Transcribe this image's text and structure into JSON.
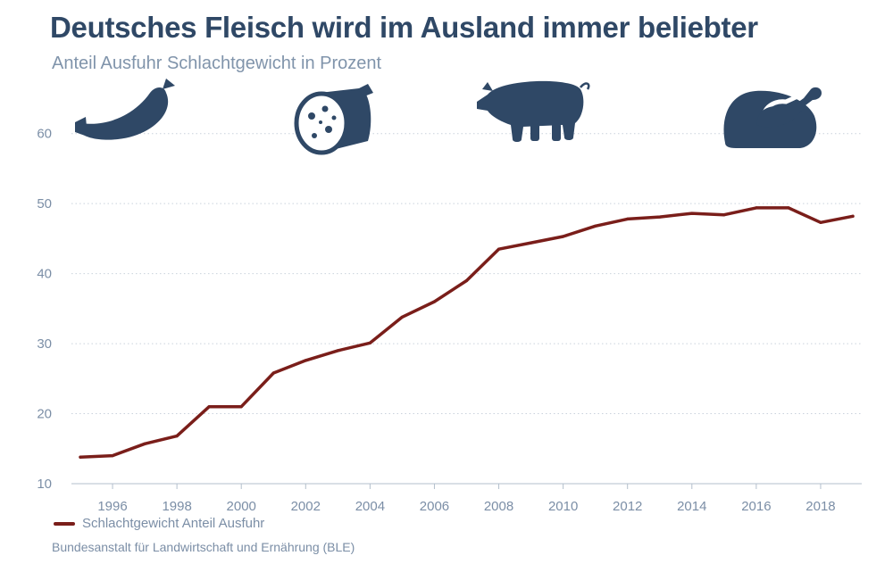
{
  "header": {
    "title": "Deutsches Fleisch wird im Ausland immer beliebter",
    "subtitle": "Anteil Ausfuhr Schlachtgewicht in Prozent"
  },
  "footer": {
    "legend_label": "Schlachtgewicht Anteil Ausfuhr",
    "source": "Bundesanstalt für Landwirtschaft und Ernährung (BLE)"
  },
  "icons": [
    "sausage-icon",
    "salami-icon",
    "pig-icon",
    "roast-chicken-icon"
  ],
  "colors": {
    "line": "#7a1e1a",
    "icon": "#2f4866",
    "text": "#7b8ea6",
    "title": "#2f4866"
  },
  "chart_data": {
    "type": "line",
    "title": "Deutsches Fleisch wird im Ausland immer beliebter",
    "subtitle": "Anteil Ausfuhr Schlachtgewicht in Prozent",
    "x": [
      1995,
      1996,
      1997,
      1998,
      1999,
      2000,
      2001,
      2002,
      2003,
      2004,
      2005,
      2006,
      2007,
      2008,
      2009,
      2010,
      2011,
      2012,
      2013,
      2014,
      2015,
      2016,
      2017,
      2018,
      2019
    ],
    "series": [
      {
        "name": "Schlachtgewicht Anteil Ausfuhr",
        "values": [
          13.8,
          14.0,
          15.7,
          16.8,
          21.0,
          21.0,
          25.8,
          27.6,
          29.0,
          30.1,
          33.8,
          36.0,
          39.0,
          43.5,
          44.4,
          45.3,
          46.8,
          47.8,
          48.1,
          48.6,
          48.4,
          49.4,
          49.4,
          47.3,
          48.2
        ]
      }
    ],
    "xticks": [
      1996,
      1998,
      2000,
      2002,
      2004,
      2006,
      2008,
      2010,
      2012,
      2014,
      2016,
      2018
    ],
    "yticks": [
      10,
      20,
      30,
      40,
      50,
      60
    ],
    "xlim": [
      1995,
      2019
    ],
    "ylim": [
      10,
      62
    ],
    "grid": "horizontal dotted",
    "legend": "bottom-left"
  }
}
